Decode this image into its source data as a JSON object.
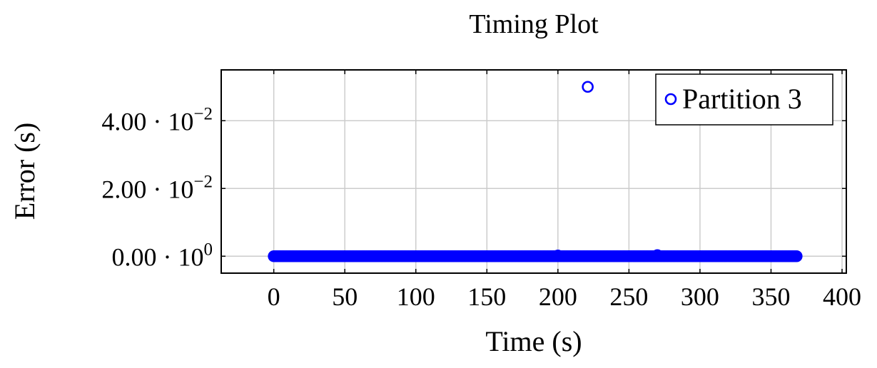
{
  "chart_data": {
    "type": "scatter",
    "title": "Timing Plot",
    "xlabel": "Time (s)",
    "ylabel": "Error (s)",
    "xlim": [
      -37,
      403
    ],
    "ylim": [
      -0.005,
      0.055
    ],
    "grid": true,
    "legend_position": "top-right",
    "x_ticks": [
      {
        "value": 0,
        "label": "0"
      },
      {
        "value": 50,
        "label": "50"
      },
      {
        "value": 100,
        "label": "100"
      },
      {
        "value": 150,
        "label": "150"
      },
      {
        "value": 200,
        "label": "200"
      },
      {
        "value": 250,
        "label": "250"
      },
      {
        "value": 300,
        "label": "300"
      },
      {
        "value": 350,
        "label": "350"
      },
      {
        "value": 400,
        "label": "400"
      }
    ],
    "y_ticks": [
      {
        "value": 0,
        "mantissa": "0.00",
        "exponent": "0"
      },
      {
        "value": 0.02,
        "mantissa": "2.00",
        "exponent": "−2"
      },
      {
        "value": 0.04,
        "mantissa": "4.00",
        "exponent": "−2"
      }
    ],
    "series": [
      {
        "name": "Partition 3",
        "color": "#0000ff",
        "marker": "circle-open",
        "dense_range": {
          "x_start": 0,
          "x_end": 368,
          "step": 1,
          "y": 0
        },
        "points": [
          {
            "x": 200,
            "y": 0.0002
          },
          {
            "x": 221,
            "y": 0.05
          },
          {
            "x": 270,
            "y": 0.0003
          }
        ]
      }
    ]
  }
}
